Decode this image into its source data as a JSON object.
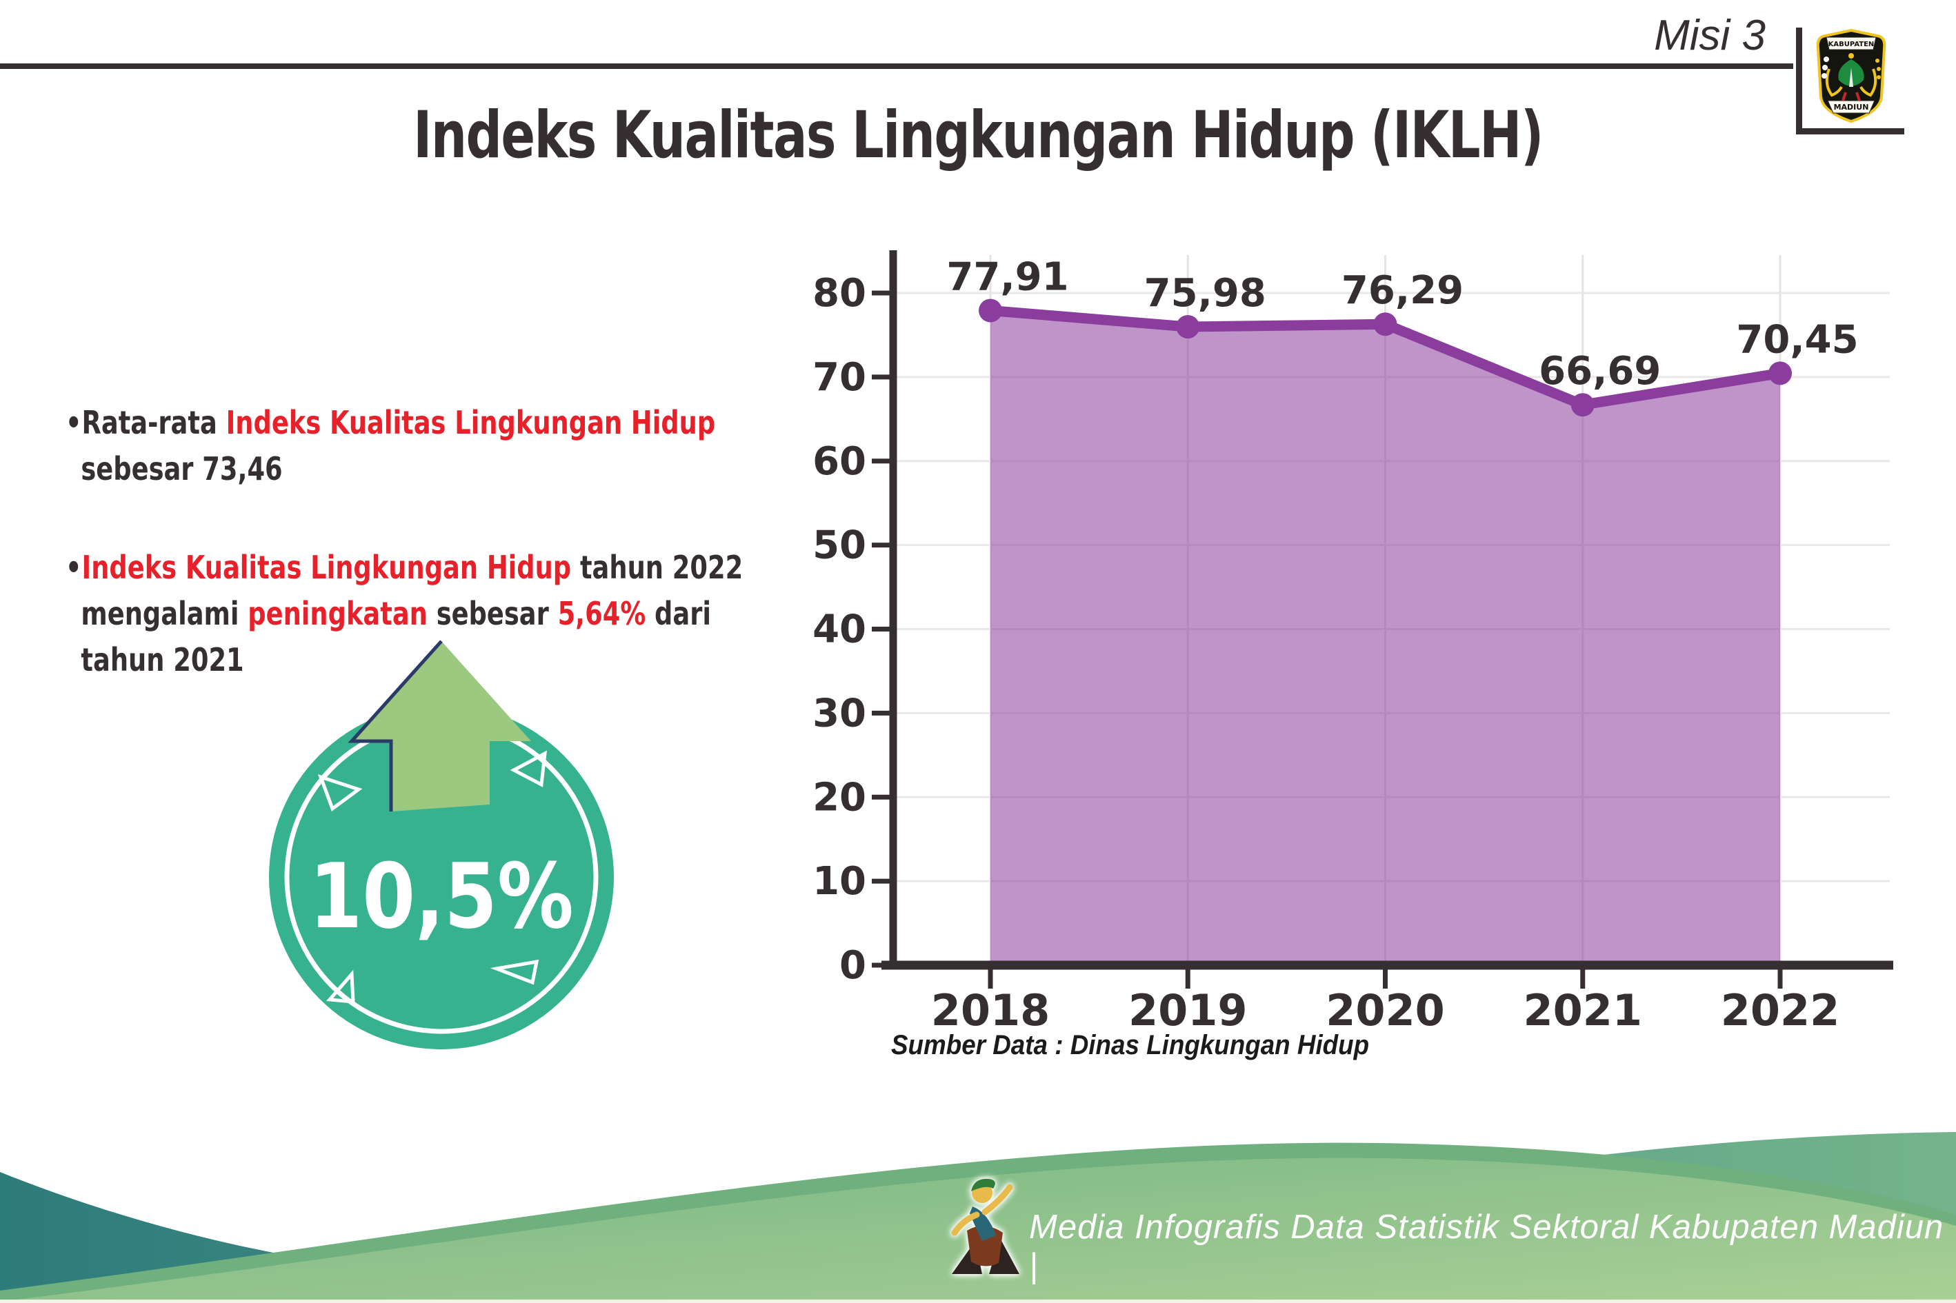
{
  "header": {
    "misi_label": "Misi 3",
    "logo": {
      "top_text": "KABUPATEN",
      "bottom_text": "MADIUN"
    }
  },
  "title": "Indeks Kualitas Lingkungan Hidup (IKLH)",
  "bullets": [
    {
      "lines": [
        [
          {
            "t": "Rata-rata ",
            "c": "dark"
          },
          {
            "t": "Indeks Kualitas Lingkungan Hidup",
            "c": "red"
          }
        ],
        [
          {
            "t": "sebesar 73,46",
            "c": "dark"
          }
        ]
      ]
    },
    {
      "lines": [
        [
          {
            "t": "Indeks Kualitas Lingkungan Hidup",
            "c": "red"
          },
          {
            "t": " tahun 2022",
            "c": "dark"
          }
        ],
        [
          {
            "t": "mengalami ",
            "c": "dark"
          },
          {
            "t": "peningkatan",
            "c": "red"
          },
          {
            "t": " sebesar ",
            "c": "dark"
          },
          {
            "t": "5,64%",
            "c": "red"
          },
          {
            "t": " dari",
            "c": "dark"
          }
        ],
        [
          {
            "t": "tahun 2021",
            "c": "dark"
          }
        ]
      ]
    }
  ],
  "badge": {
    "value": "10,5%",
    "direction": "up"
  },
  "chart_data": {
    "type": "area",
    "categories": [
      "2018",
      "2019",
      "2020",
      "2021",
      "2022"
    ],
    "values": [
      77.91,
      75.98,
      76.29,
      66.69,
      70.45
    ],
    "point_labels": [
      "77,91",
      "75,98",
      "76,29",
      "66,69",
      "70,45"
    ],
    "title": "",
    "xlabel": "",
    "ylabel": "",
    "ylim": [
      0,
      85
    ],
    "yticks": [
      0,
      10,
      20,
      30,
      40,
      50,
      60,
      70,
      80
    ],
    "grid": true,
    "legend": "none",
    "source": "Sumber Data : Dinas Lingkungan Hidup"
  },
  "footer": {
    "credit": "Media Infografis Data Statistik Sektoral Kabupaten Madiun |"
  },
  "colors": {
    "dark_text": "#362f31",
    "red_text": "#e62129",
    "line_purple": "#8a3d9c",
    "area_purple": "#b787be",
    "badge_teal": "#36b28e",
    "arrow_green": "#9dc87f",
    "arrow_outline": "#2b3a66",
    "footer_teal": "#2d7c7c",
    "footer_green": "#a9d096"
  }
}
